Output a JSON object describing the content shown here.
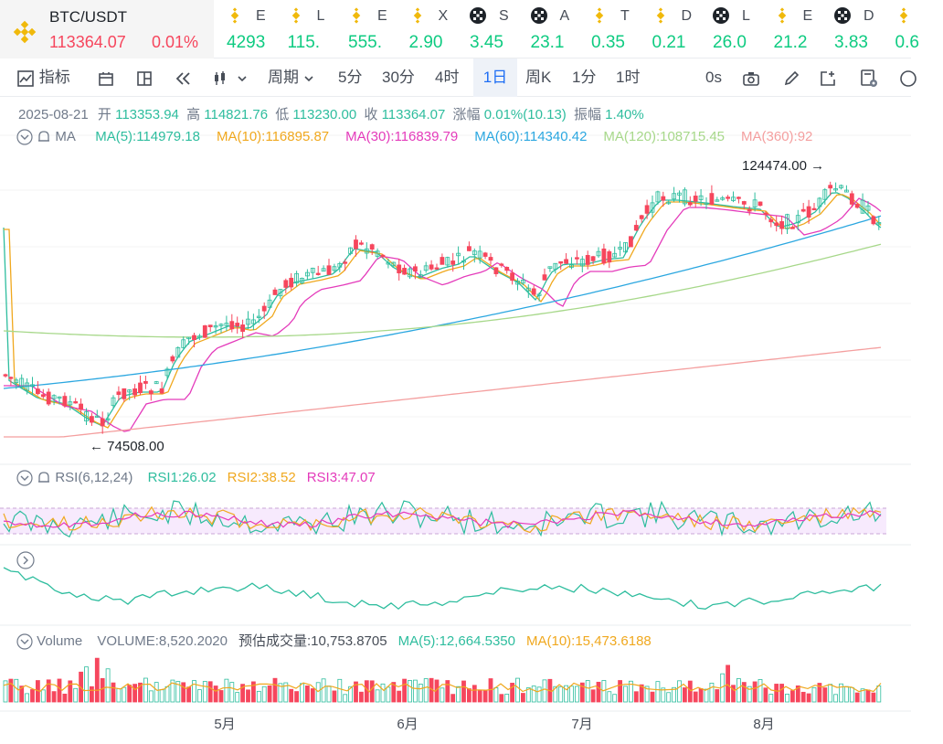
{
  "main_pair": {
    "symbol": "BTC/USDT",
    "price": "113364.07",
    "change": "0.01%"
  },
  "tickers": [
    {
      "icon": "bnb-icon",
      "name": "E",
      "value": "4293"
    },
    {
      "icon": "bnb-icon",
      "name": "L",
      "value": "115."
    },
    {
      "icon": "bnb-icon",
      "name": "E",
      "value": "555."
    },
    {
      "icon": "bnb-icon",
      "name": "X",
      "value": "2.90"
    },
    {
      "icon": "okx-icon",
      "name": "S",
      "value": "3.45"
    },
    {
      "icon": "okx-icon",
      "name": "A",
      "value": "23.1"
    },
    {
      "icon": "bnb-icon",
      "name": "T",
      "value": "0.35"
    },
    {
      "icon": "bnb-icon",
      "name": "D",
      "value": "0.21"
    },
    {
      "icon": "okx-icon",
      "name": "L",
      "value": "26.0"
    },
    {
      "icon": "bnb-icon",
      "name": "E",
      "value": "21.2"
    },
    {
      "icon": "okx-icon",
      "name": "D",
      "value": "3.83"
    },
    {
      "icon": "bnb-icon",
      "name": "",
      "value": "0.6"
    }
  ],
  "toolbar": {
    "indicators": "指标",
    "period": "周期",
    "intervals": [
      "5分",
      "30分",
      "4时",
      "1日",
      "周K",
      "1分",
      "1时"
    ],
    "selected_interval": "1日",
    "countdown": "0s"
  },
  "ohlc": {
    "date": "2025-08-21",
    "open_label": "开",
    "open": "113353.94",
    "high_label": "高",
    "high": "114821.76",
    "low_label": "低",
    "low": "113230.00",
    "close_label": "收",
    "close": "113364.07",
    "change_label": "涨幅",
    "change": "0.01%(10.13)",
    "amplitude_label": "振幅",
    "amplitude": "1.40%"
  },
  "ma_legend": {
    "title": "MA",
    "items": [
      {
        "label": "MA(5):114979.18",
        "color": "#2ebd9e"
      },
      {
        "label": "MA(10):116895.87",
        "color": "#f0a81e"
      },
      {
        "label": "MA(30):116839.79",
        "color": "#e43bbb"
      },
      {
        "label": "MA(60):114340.42",
        "color": "#2ba7e0"
      },
      {
        "label": "MA(120):108715.45",
        "color": "#a7d88a"
      },
      {
        "label": "MA(360):92",
        "color": "#f49f9f"
      }
    ]
  },
  "chart_annotations": {
    "high_label": "124474.00",
    "low_label": "74508.00"
  },
  "rsi_legend": {
    "title": "RSI(6,12,24)",
    "items": [
      {
        "label": "RSI1:26.02",
        "color": "#2ebd9e"
      },
      {
        "label": "RSI2:38.52",
        "color": "#f0a81e"
      },
      {
        "label": "RSI3:47.07",
        "color": "#e43bbb"
      }
    ]
  },
  "volume_legend": {
    "title": "Volume",
    "items": [
      {
        "label": "VOLUME:8,520.2020",
        "color": "#707a8a"
      },
      {
        "label": "预估成交量:10,753.8705",
        "color": "#474d57"
      },
      {
        "label": "MA(5):12,664.5350",
        "color": "#2ebd9e"
      },
      {
        "label": "MA(10):15,473.6188",
        "color": "#f0a81e"
      }
    ]
  },
  "x_axis": [
    "5月",
    "6月",
    "7月",
    "8月"
  ],
  "colors": {
    "up": "#2ebd9e",
    "down": "#f6465d",
    "accent": "#1e6ef4",
    "brand": "#f0b90b"
  }
}
